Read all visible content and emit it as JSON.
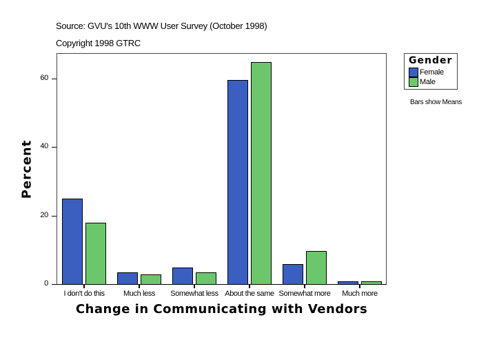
{
  "header": {
    "source": "Source: GVU's 10th WWW User Survey (October 1998)",
    "copyright": "Copyright 1998 GTRC"
  },
  "legend": {
    "title": "Gender",
    "items": [
      {
        "label": "Female",
        "color": "#3a5fc0"
      },
      {
        "label": "Male",
        "color": "#6cc76c"
      }
    ]
  },
  "note": "Bars show Means",
  "axes": {
    "ylabel": "Percent",
    "xlabel": "Change in Communicating with Vendors",
    "yticks": [
      "0",
      "20",
      "40",
      "60"
    ]
  },
  "chart_data": {
    "type": "bar",
    "title": "",
    "xlabel": "Change in Communicating with Vendors",
    "ylabel": "Percent",
    "ylim": [
      0,
      67.5
    ],
    "categories": [
      "I don't do this",
      "Much less",
      "Somewhat less",
      "About the same",
      "Somewhat more",
      "Much more"
    ],
    "series": [
      {
        "name": "Female",
        "color": "#3a5fc0",
        "values": [
          25.0,
          3.4,
          4.8,
          59.6,
          5.8,
          0.8
        ]
      },
      {
        "name": "Male",
        "color": "#6cc76c",
        "values": [
          17.9,
          2.8,
          3.4,
          64.8,
          9.7,
          0.8
        ]
      }
    ],
    "yticks": [
      0,
      20,
      40,
      60
    ],
    "legend": {
      "title": "Gender",
      "position": "right"
    },
    "grid": false,
    "annotations": [
      "Source: GVU's 10th WWW User Survey (October 1998)",
      "Copyright 1998 GTRC",
      "Bars show Means"
    ]
  }
}
